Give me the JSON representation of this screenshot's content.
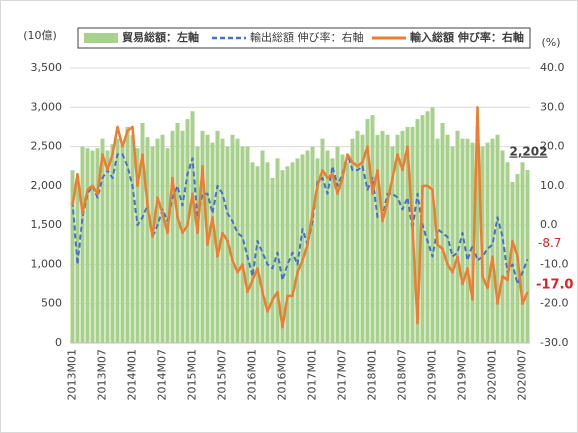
{
  "chart_data": {
    "type": "combo",
    "y_label": "(10億)",
    "y2_label": "(%)",
    "categories": [
      "2013M01",
      null,
      null,
      null,
      null,
      null,
      "2013M07",
      null,
      null,
      null,
      null,
      null,
      "2014M01",
      null,
      null,
      null,
      null,
      null,
      "2014M07",
      null,
      null,
      null,
      null,
      null,
      "2015M01",
      null,
      null,
      null,
      null,
      null,
      "2015M07",
      null,
      null,
      null,
      null,
      null,
      "2016M01",
      null,
      null,
      null,
      null,
      null,
      "2016M07",
      null,
      null,
      null,
      null,
      null,
      "2017M01",
      null,
      null,
      null,
      null,
      null,
      "2017M07",
      null,
      null,
      null,
      null,
      null,
      "2018M01",
      null,
      null,
      null,
      null,
      null,
      "2018M07",
      null,
      null,
      null,
      null,
      null,
      "2019M01",
      null,
      null,
      null,
      null,
      null,
      "2019M07",
      null,
      null,
      null,
      null,
      null,
      "2020M01",
      null,
      null,
      null,
      null,
      null,
      "2020M07",
      null
    ],
    "series": [
      {
        "name": "貿易総額：左軸",
        "type": "bar",
        "color": "#a9d18e",
        "values": [
          2200,
          2050,
          2500,
          2480,
          2450,
          2480,
          2600,
          2450,
          2530,
          2600,
          2560,
          2750,
          2650,
          2480,
          2800,
          2620,
          2500,
          2600,
          2650,
          2480,
          2700,
          2800,
          2700,
          2850,
          2950,
          2500,
          2700,
          2650,
          2550,
          2700,
          2600,
          2500,
          2650,
          2600,
          2500,
          2500,
          2300,
          2250,
          2450,
          2300,
          2100,
          2350,
          2200,
          2250,
          2300,
          2350,
          2400,
          2450,
          2500,
          2350,
          2600,
          2450,
          2350,
          2500,
          2400,
          2300,
          2600,
          2700,
          2650,
          2850,
          2900,
          2650,
          2700,
          2650,
          2500,
          2650,
          2700,
          2750,
          2750,
          2850,
          2900,
          2950,
          3000,
          2600,
          2800,
          2650,
          2500,
          2700,
          2600,
          2600,
          2550,
          2750,
          2500,
          2550,
          2600,
          2650,
          2450,
          2300,
          2050,
          2150,
          2300,
          2202
        ],
        "value_labels": [
          null,
          null,
          null,
          null,
          null,
          null,
          null,
          null,
          null,
          null,
          null,
          null,
          null,
          null,
          null,
          null,
          null,
          null,
          null,
          null,
          null,
          null,
          null,
          null,
          null,
          null,
          null,
          null,
          null,
          null,
          null,
          null,
          null,
          null,
          null,
          null,
          null,
          null,
          null,
          null,
          null,
          null,
          null,
          null,
          null,
          null,
          null,
          null,
          null,
          null,
          null,
          null,
          null,
          null,
          null,
          null,
          null,
          null,
          null,
          null,
          null,
          null,
          null,
          null,
          null,
          null,
          null,
          null,
          null,
          null,
          null,
          null,
          null,
          null,
          null,
          null,
          null,
          null,
          null,
          null,
          null,
          null,
          null,
          null,
          null,
          null,
          null,
          null,
          null,
          null,
          null,
          "2,202"
        ]
      },
      {
        "name": "輸出総額 伸び率：右軸",
        "type": "line",
        "dashed": true,
        "axis": "y2",
        "color": "#4472c4",
        "values": [
          6,
          -10,
          2,
          8,
          10,
          7,
          12,
          14,
          12,
          18,
          18,
          15,
          10,
          0,
          2,
          5,
          -3,
          0,
          4,
          1,
          7,
          10,
          5,
          13,
          17,
          2,
          8,
          8,
          3,
          10,
          8,
          3,
          1,
          -2,
          -3,
          -8,
          -13,
          -4,
          -7,
          -10,
          -11,
          -7,
          -14,
          -10,
          -7,
          -10,
          -1,
          -5,
          1,
          11,
          12,
          8,
          15,
          10,
          13,
          18,
          14,
          14,
          15,
          9,
          12,
          2,
          2,
          8,
          8,
          7,
          4,
          7,
          -1,
          8,
          0,
          -4,
          -8,
          -1,
          -2,
          -3,
          -8,
          -7,
          -2,
          -9,
          -5,
          -9,
          -8,
          -6,
          -5,
          2,
          -3,
          -12,
          -10,
          -15,
          -12,
          -8.7
        ]
      },
      {
        "name": "輸入総額 伸び率：右軸",
        "type": "line",
        "axis": "y2",
        "color": "#ed7d31",
        "values": [
          5,
          13,
          3,
          9,
          10,
          8,
          18,
          14,
          18,
          25,
          20,
          24,
          25,
          10,
          18,
          5,
          -3,
          7,
          3,
          -2,
          12,
          2,
          -2,
          0,
          8,
          -2,
          15,
          -5,
          2,
          -8,
          -2,
          -4,
          -9,
          -12,
          -10,
          -17,
          -14,
          -11,
          -17,
          -22,
          -19,
          -17,
          -26,
          -18,
          -18,
          -12,
          -9,
          -5,
          3,
          10,
          14,
          12,
          13,
          8,
          12,
          18,
          16,
          15,
          16,
          20,
          8,
          14,
          1,
          6,
          12,
          18,
          14,
          20,
          0,
          -25,
          10,
          10,
          9,
          -5,
          -6,
          -10,
          -12,
          -8,
          -15,
          -11,
          -19,
          30,
          -13,
          -16,
          -8,
          -20,
          -13,
          -14,
          -4,
          -8,
          -20,
          -17
        ],
        "value_labels": [
          null,
          null,
          null,
          null,
          null,
          null,
          null,
          null,
          null,
          null,
          null,
          null,
          null,
          null,
          null,
          null,
          null,
          null,
          null,
          null,
          null,
          null,
          null,
          null,
          null,
          null,
          null,
          null,
          null,
          null,
          null,
          null,
          null,
          null,
          null,
          null,
          null,
          null,
          null,
          null,
          null,
          null,
          null,
          null,
          null,
          null,
          null,
          null,
          null,
          null,
          null,
          null,
          null,
          null,
          null,
          null,
          null,
          null,
          null,
          null,
          null,
          null,
          null,
          null,
          null,
          null,
          null,
          null,
          null,
          null,
          null,
          null,
          null,
          null,
          null,
          null,
          null,
          null,
          null,
          null,
          null,
          null,
          null,
          null,
          null,
          null,
          null,
          null,
          null,
          null,
          null,
          "-17.0"
        ]
      }
    ],
    "ylim": [
      0,
      3500
    ],
    "yticks": [
      0,
      500,
      {
        "value": 1000,
        "label": "1,000"
      },
      {
        "value": 1500,
        "label": "1,500"
      },
      {
        "value": 2000,
        "label": "2,000"
      },
      {
        "value": 2500,
        "label": "2,500"
      },
      {
        "value": 3000,
        "label": "3,000"
      },
      {
        "value": 3500,
        "label": "3,500"
      }
    ],
    "y2lim": [
      -30,
      40
    ],
    "y2ticks": [
      {
        "value": 40,
        "label": "40.0"
      },
      {
        "value": 30,
        "label": "30.0"
      },
      {
        "value": 20,
        "label": "20.0"
      },
      {
        "value": 10,
        "label": "10.0"
      },
      {
        "value": 0,
        "label": "0.0"
      },
      {
        "value": -10,
        "label": "-10.0"
      },
      {
        "value": -20,
        "label": "-20.0"
      },
      {
        "value": -30,
        "label": "-30.0"
      }
    ],
    "grid": true,
    "legend": "top"
  }
}
